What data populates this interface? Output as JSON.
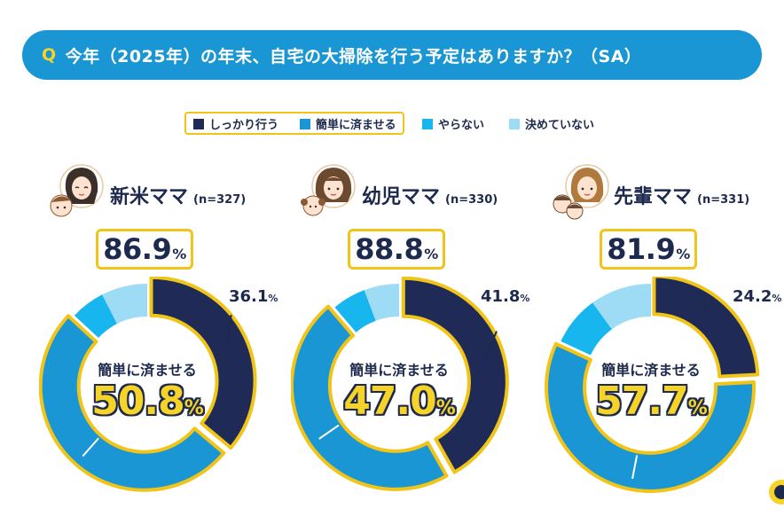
{
  "question": {
    "mark": "Q",
    "text": "今年（2025年）の年末、自宅の大掃除を行う予定はありますか？（SA）"
  },
  "legend": [
    {
      "label": "しっかり行う",
      "color": "#1f2b56"
    },
    {
      "label": "簡単に済ませる",
      "color": "#1a96d4"
    },
    {
      "label": "やらない",
      "color": "#17b6ee"
    },
    {
      "label": "決めていない",
      "color": "#9edbf5"
    }
  ],
  "colors": {
    "highlight_border": "#f0c419",
    "value_fill": "#f5d327",
    "navy": "#1d2a4e",
    "header_bar": "#1a96d4"
  },
  "chart_data": [
    {
      "type": "pie",
      "group": "新米ママ",
      "n": "(n=327)",
      "total": "86.9",
      "total_unit": "%",
      "center_label": "簡単に済ませる",
      "center_value": "50.8",
      "center_unit": "%",
      "dark_value_label": "36.1",
      "dark_unit": "%",
      "categories": [
        "しっかり行う",
        "簡単に済ませる",
        "やらない",
        "決めていない"
      ],
      "values": [
        36.1,
        50.8,
        5.6,
        7.5
      ]
    },
    {
      "type": "pie",
      "group": "幼児ママ",
      "n": "(n=330)",
      "total": "88.8",
      "total_unit": "%",
      "center_label": "簡単に済ませる",
      "center_value": "47.0",
      "center_unit": "%",
      "dark_value_label": "41.8",
      "dark_unit": "%",
      "categories": [
        "しっかり行う",
        "簡単に済ませる",
        "やらない",
        "決めていない"
      ],
      "values": [
        41.8,
        47.0,
        5.5,
        5.7
      ]
    },
    {
      "type": "pie",
      "group": "先輩ママ",
      "n": "(n=331)",
      "total": "81.9",
      "total_unit": "%",
      "center_label": "簡単に済ませる",
      "center_value": "57.7",
      "center_unit": "%",
      "dark_value_label": "24.2",
      "dark_unit": "%",
      "categories": [
        "しっかり行う",
        "簡単に済ませる",
        "やらない",
        "決めていない"
      ],
      "values": [
        24.2,
        57.7,
        8.1,
        10.0
      ]
    }
  ]
}
